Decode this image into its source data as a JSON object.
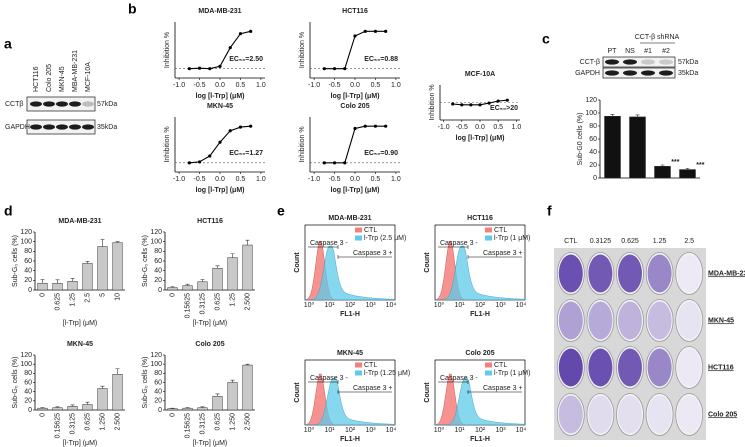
{
  "panel_labels": [
    "a",
    "b",
    "c",
    "d",
    "e",
    "f"
  ],
  "blot_a": {
    "lanes": [
      "HCT116",
      "Colo 205",
      "MKN-45",
      "MBA-MB-231",
      "MCF-10A"
    ],
    "rows": [
      {
        "protein": "CCTβ",
        "size": "57kDa"
      },
      {
        "protein": "GAPDH",
        "size": "35kDa"
      }
    ]
  },
  "blot_c": {
    "rows": [
      {
        "protein": "CCT-β",
        "size": "57kDa"
      },
      {
        "protein": "GAPDH",
        "size": "35kDa"
      }
    ]
  },
  "chart_data": [
    {
      "type": "line",
      "title": "MDA-MB-231",
      "annotation": "EC₅₀=2.50",
      "x_label": "log [l-Trp] (μM)",
      "y_label": "Inhibition %",
      "x": [
        -0.75,
        -0.5,
        -0.25,
        0,
        0.25,
        0.5,
        0.75
      ],
      "values": [
        0,
        1,
        0,
        5,
        45,
        75,
        80
      ],
      "color": "#000000",
      "xlim": [
        -1.1,
        1.1
      ],
      "ylim": [
        -20,
        100
      ],
      "zero_line": true,
      "xticks": [
        {
          "value": -1,
          "label": "-1.0"
        },
        {
          "value": -0.5,
          "label": "-0.5"
        },
        {
          "value": 0,
          "label": "0.0"
        },
        {
          "value": 0.5,
          "label": "0.5"
        },
        {
          "value": 1,
          "label": "1.0"
        }
      ]
    },
    {
      "type": "line",
      "title": "HCT116",
      "annotation": "EC₅₀=0.88",
      "x_label": "log [l-Trp] (μM)",
      "y_label": "Inhibition %",
      "x": [
        -0.75,
        -0.5,
        -0.25,
        0,
        0.25,
        0.5,
        0.75
      ],
      "values": [
        0,
        0,
        0,
        70,
        80,
        80,
        80
      ],
      "color": "#000000",
      "xlim": [
        -1.1,
        1.1
      ],
      "ylim": [
        -20,
        100
      ],
      "zero_line": true,
      "xticks": [
        {
          "value": -1,
          "label": "-1.0"
        },
        {
          "value": -0.5,
          "label": "-0.5"
        },
        {
          "value": 0,
          "label": "0.0"
        },
        {
          "value": 0.5,
          "label": "0.5"
        },
        {
          "value": 1,
          "label": "1.0"
        }
      ]
    },
    {
      "type": "line",
      "title": "MKN-45",
      "annotation": "EC₅₀=1.27",
      "x_label": "log [l-Trp] (μM)",
      "y_label": "Inhibition %",
      "x": [
        -0.75,
        -0.5,
        -0.25,
        0,
        0.25,
        0.5,
        0.75
      ],
      "values": [
        0,
        2,
        15,
        45,
        70,
        78,
        80
      ],
      "color": "#000000",
      "xlim": [
        -1.1,
        1.1
      ],
      "ylim": [
        -20,
        100
      ],
      "zero_line": true,
      "xticks": [
        {
          "value": -1,
          "label": "-1.0"
        },
        {
          "value": -0.5,
          "label": "-0.5"
        },
        {
          "value": 0,
          "label": "0.0"
        },
        {
          "value": 0.5,
          "label": "0.5"
        },
        {
          "value": 1,
          "label": "1.0"
        }
      ]
    },
    {
      "type": "line",
      "title": "Colo 205",
      "annotation": "EC₅₀=0.90",
      "x_label": "log [l-Trp] (μM)",
      "y_label": "Inhibition %",
      "x": [
        -0.75,
        -0.5,
        -0.25,
        0,
        0.25,
        0.5,
        0.75
      ],
      "values": [
        0,
        0,
        0,
        75,
        80,
        80,
        80
      ],
      "color": "#000000",
      "xlim": [
        -1.1,
        1.1
      ],
      "ylim": [
        -20,
        100
      ],
      "zero_line": true,
      "xticks": [
        {
          "value": -1,
          "label": "-1.0"
        },
        {
          "value": -0.5,
          "label": "-0.5"
        },
        {
          "value": 0,
          "label": "0.0"
        },
        {
          "value": 0.5,
          "label": "0.5"
        },
        {
          "value": 1,
          "label": "1.0"
        }
      ]
    },
    {
      "type": "line",
      "title": "MCF-10A",
      "annotation": "EC₅₀>20",
      "x_label": "log [l-Trp] (μM)",
      "y_label": "Inhibition %",
      "x": [
        -0.75,
        -0.5,
        -0.25,
        0,
        0.25,
        0.5,
        0.75
      ],
      "values": [
        -5,
        -8,
        -8,
        -8,
        -2,
        5,
        8
      ],
      "color": "#000000",
      "xlim": [
        -1.1,
        1.1
      ],
      "ylim": [
        -60,
        60
      ],
      "zero_line": true,
      "xticks": [
        {
          "value": -1,
          "label": "-1.0"
        },
        {
          "value": -0.5,
          "label": "-0.5"
        },
        {
          "value": 0,
          "label": "0.0"
        },
        {
          "value": 0.5,
          "label": "0.5"
        },
        {
          "value": 1,
          "label": "1.0"
        }
      ]
    },
    {
      "type": "bar",
      "group_label": "CCT-β shRNA",
      "y_label": "Sub-G0 cells (%)",
      "categories": [
        "PT",
        "NS",
        "#1",
        "#2"
      ],
      "values": [
        95,
        94,
        18,
        13
      ],
      "errors": [
        3,
        3,
        2,
        2
      ],
      "color": "#111111",
      "ylim": [
        0,
        120
      ],
      "yticks": [
        0,
        20,
        40,
        60,
        80,
        100,
        120
      ],
      "annotations": [
        {
          "category": "#1",
          "text": "***"
        },
        {
          "category": "#2",
          "text": "***"
        }
      ]
    },
    {
      "type": "bar",
      "title": "MDA-MB-231",
      "x_label": "[l-Trp] (μM)",
      "y_label": "Sub-G₀ cells (%)",
      "categories": [
        "0",
        "0.625",
        "1.25",
        "2.5",
        "5",
        "10"
      ],
      "values": [
        14,
        14,
        18,
        55,
        90,
        98
      ],
      "errors": [
        8,
        7,
        6,
        4,
        15,
        2
      ],
      "color": "#c8c8c8",
      "ylim": [
        0,
        120
      ],
      "yticks": [
        0,
        20,
        40,
        60,
        80,
        100,
        120
      ]
    },
    {
      "type": "bar",
      "title": "HCT116",
      "x_label": "[l-Trp] (μM)",
      "y_label": "Sub-G₀ cells (%)",
      "categories": [
        "0",
        "0.15625",
        "0.3125",
        "0.625",
        "1.25",
        "2.500"
      ],
      "values": [
        5,
        9,
        17,
        45,
        67,
        93
      ],
      "errors": [
        2,
        3,
        5,
        5,
        8,
        10
      ],
      "color": "#c8c8c8",
      "ylim": [
        0,
        120
      ],
      "yticks": [
        0,
        20,
        40,
        60,
        80,
        100,
        120
      ]
    },
    {
      "type": "bar",
      "title": "MKN-45",
      "x_label": "[l-Trp] (μM)",
      "y_label": "Sub-G₀ cells (%)",
      "categories": [
        "0",
        "0.15625",
        "0.3125",
        "0.625",
        "1.250",
        "2.500"
      ],
      "values": [
        4,
        5,
        8,
        12,
        47,
        78
      ],
      "errors": [
        1,
        2,
        3,
        5,
        5,
        12
      ],
      "color": "#c8c8c8",
      "ylim": [
        0,
        120
      ],
      "yticks": [
        0,
        20,
        40,
        60,
        80,
        100,
        120
      ]
    },
    {
      "type": "bar",
      "title": "Colo 205",
      "x_label": "[l-Trp] (μM)",
      "y_label": "Sub-G₀ cells (%)",
      "categories": [
        "0",
        "0.15625",
        "0.3125",
        "0.625",
        "1.250",
        "2.500"
      ],
      "values": [
        3,
        4,
        5,
        30,
        60,
        98
      ],
      "errors": [
        1,
        1,
        2,
        5,
        5,
        2
      ],
      "color": "#c8c8c8",
      "ylim": [
        0,
        120
      ],
      "yticks": [
        0,
        20,
        40,
        60,
        80,
        100,
        120
      ]
    }
  ],
  "flow": {
    "x_label": "FL1-H",
    "y_label": "Count",
    "xticks": [
      "10⁰",
      "10¹",
      "10²",
      "10³",
      "10⁴"
    ],
    "gate_labels": [
      "Caspase 3 -",
      "Caspase 3 +"
    ],
    "colors": [
      "#f4807c",
      "#5ecbe9"
    ],
    "panels": [
      {
        "title": "MDA-MB-231",
        "legend": [
          "CTL",
          "l-Trp (2.5 μM)"
        ]
      },
      {
        "title": "HCT116",
        "legend": [
          "CTL",
          "l-Trp (1 μM)"
        ]
      },
      {
        "title": "MKN-45",
        "legend": [
          "CTL",
          "l-Trp (1.25 μM)"
        ]
      },
      {
        "title": "Colo 205",
        "legend": [
          "CTL",
          "l-Trp (1 μM)"
        ]
      }
    ]
  },
  "plates": {
    "columns": [
      "CTL",
      "0.3125",
      "0.625",
      "1.25",
      "2.5"
    ],
    "rows": [
      "MDA-MB-231",
      "MKN-45",
      "HCT116",
      "Colo 205"
    ]
  }
}
